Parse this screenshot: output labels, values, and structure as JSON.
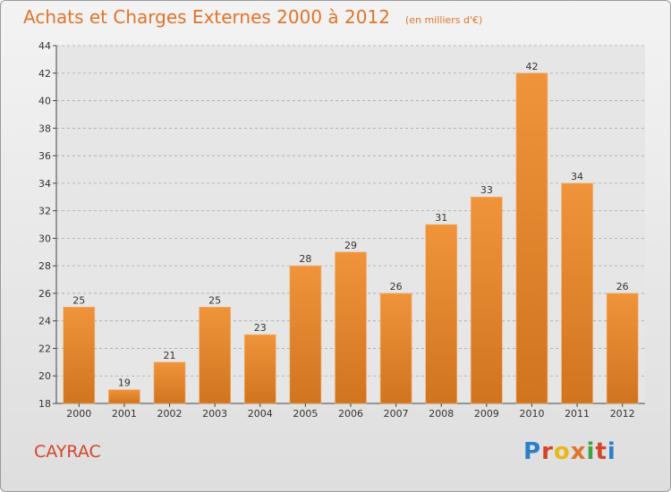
{
  "title": "Achats et Charges Externes 2000 à 2012",
  "unit": "(en milliers d'€)",
  "commune": "CAYRAC",
  "logo": {
    "text": "Proxiti",
    "letter_colors": [
      "#2b7fc9",
      "#d2462c",
      "#e8b817",
      "#e0742b",
      "#43a142",
      "#d2462c",
      "#2b7fc9"
    ]
  },
  "colors": {
    "bar": "#f0943c",
    "bar_dark": "#d0741e",
    "title": "#e0742b"
  },
  "chart_data": {
    "type": "bar",
    "title": "Achats et Charges Externes 2000 à 2012",
    "subtitle": "(en milliers d'€)",
    "categories": [
      "2000",
      "2001",
      "2002",
      "2003",
      "2004",
      "2005",
      "2006",
      "2007",
      "2008",
      "2009",
      "2010",
      "2011",
      "2012"
    ],
    "values": [
      25,
      19,
      21,
      25,
      23,
      28,
      29,
      26,
      31,
      33,
      42,
      34,
      26
    ],
    "ylim": [
      18,
      44
    ],
    "yticks": [
      18,
      20,
      22,
      24,
      26,
      28,
      30,
      32,
      34,
      36,
      38,
      40,
      42,
      44
    ],
    "grid": true,
    "legend": "none"
  }
}
